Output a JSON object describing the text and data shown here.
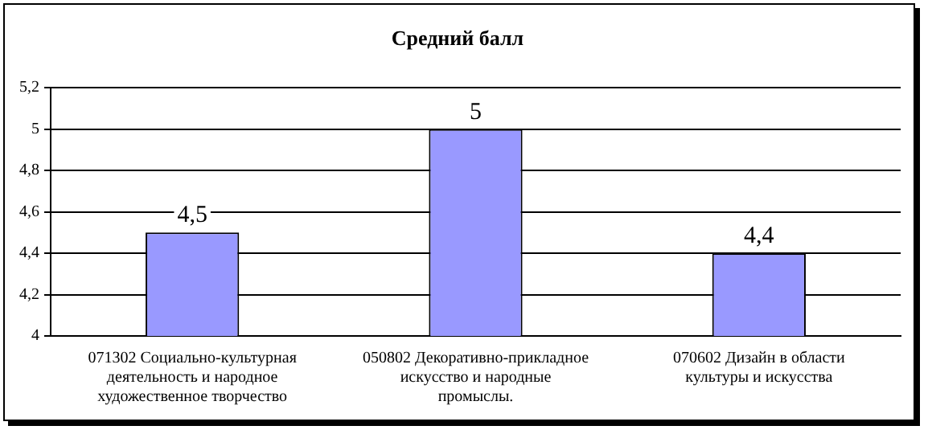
{
  "chart_data": {
    "type": "bar",
    "title": "Средний балл",
    "categories": [
      "071302 Социально-культурная деятельность и народное художественное творчество",
      "050802 Декоративно-прикладное искусство и народные промыслы.",
      "070602 Дизайн в области культуры и искусства"
    ],
    "values": [
      4.5,
      5,
      4.4
    ],
    "value_labels": [
      "4,5",
      "5",
      "4,4"
    ],
    "color": "#9999ff",
    "ylim": [
      4,
      5.2
    ],
    "yticks": [
      {
        "value": 4,
        "label": "4"
      },
      {
        "value": 4.2,
        "label": "4,2"
      },
      {
        "value": 4.4,
        "label": "4,4"
      },
      {
        "value": 4.6,
        "label": "4,6"
      },
      {
        "value": 4.8,
        "label": "4,8"
      },
      {
        "value": 5,
        "label": "5"
      },
      {
        "value": 5.2,
        "label": "5,2"
      }
    ],
    "grid": "y",
    "legend": false
  }
}
